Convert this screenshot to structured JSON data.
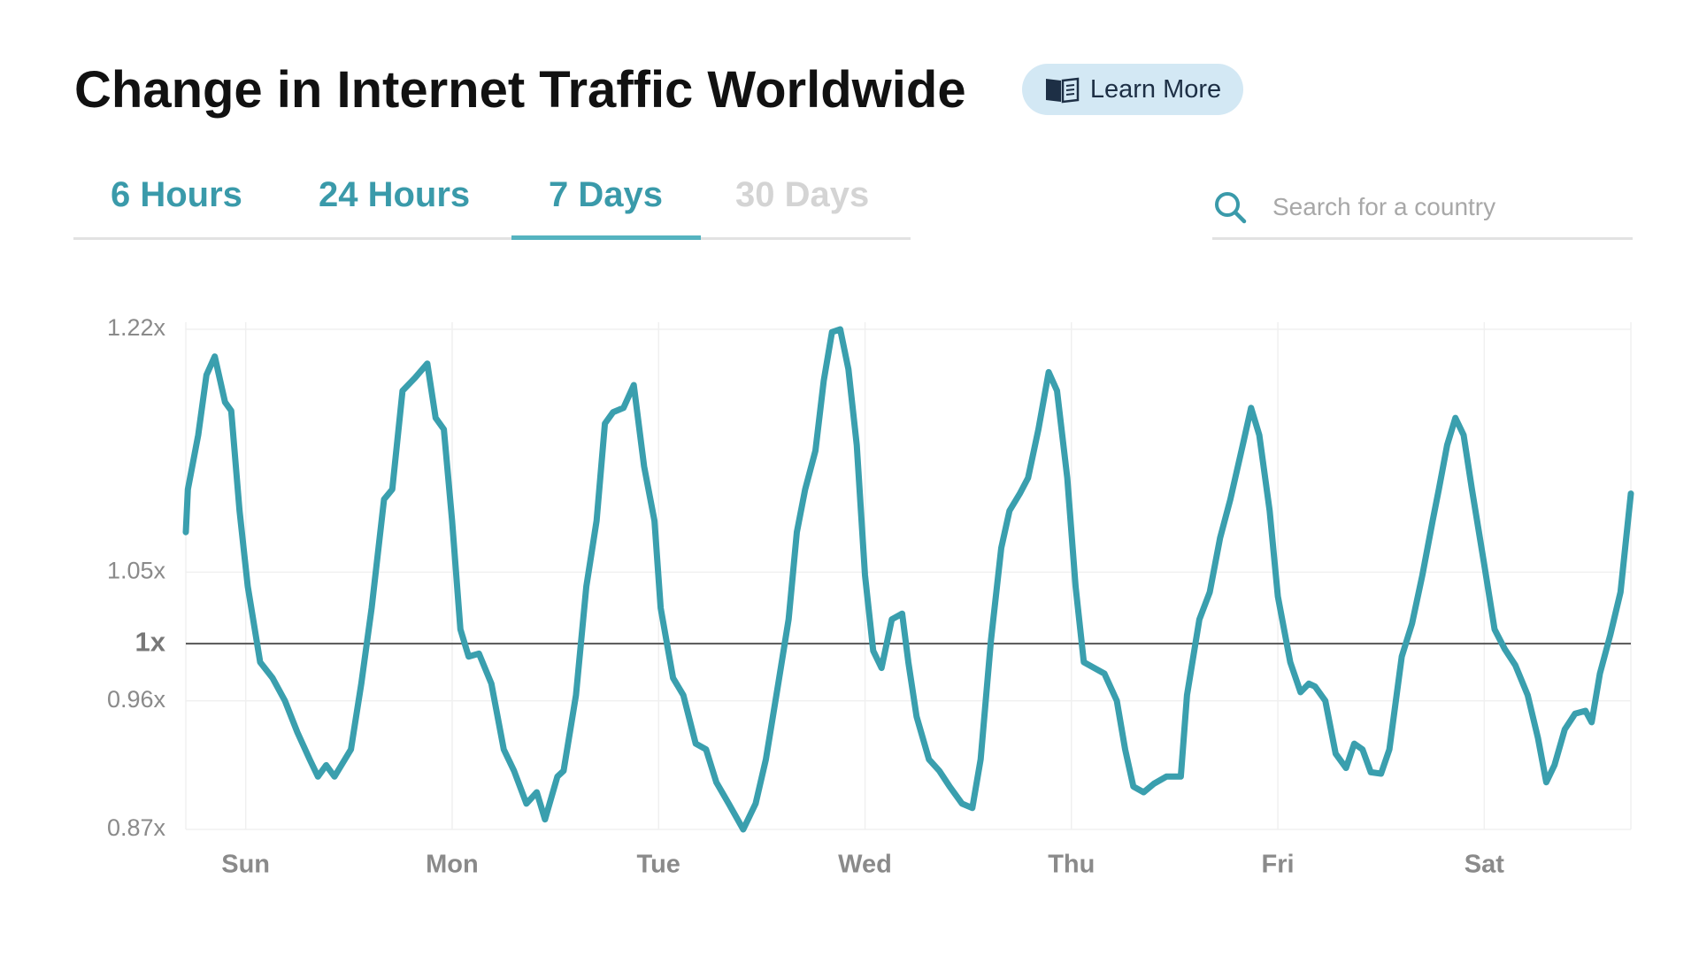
{
  "learn_more": "Learn More",
  "tabs": [
    {
      "label": "6 Hours",
      "state": "normal"
    },
    {
      "label": "24 Hours",
      "state": "normal"
    },
    {
      "label": "7 Days",
      "state": "active"
    },
    {
      "label": "30 Days",
      "state": "disabled"
    }
  ],
  "search_placeholder": "Search for a country",
  "chart_data": {
    "type": "line",
    "title": "Change in Internet Traffic Worldwide",
    "color": "#3a9fae",
    "grid": true,
    "baseline": 1,
    "xlim": [
      -0.29,
      6.71
    ],
    "ylim": [
      0.87,
      1.22
    ],
    "xticks": [
      {
        "value": 0,
        "label": "Sun"
      },
      {
        "value": 1,
        "label": "Mon"
      },
      {
        "value": 2,
        "label": "Tue"
      },
      {
        "value": 3,
        "label": "Wed"
      },
      {
        "value": 4,
        "label": "Thu"
      },
      {
        "value": 5,
        "label": "Fri"
      },
      {
        "value": 6,
        "label": "Sat"
      }
    ],
    "yticks": [
      {
        "value": 0.87,
        "label": "0.87x"
      },
      {
        "value": 0.96,
        "label": "0.96x"
      },
      {
        "value": 1,
        "label": "1x"
      },
      {
        "value": 1.05,
        "label": "1.05x"
      },
      {
        "value": 1.22,
        "label": "1.22x"
      }
    ],
    "x": [
      -0.29,
      -0.28,
      -0.23,
      -0.19,
      -0.15,
      -0.1,
      -0.07,
      -0.03,
      0.01,
      0.07,
      0.13,
      0.19,
      0.25,
      0.31,
      0.35,
      0.39,
      0.43,
      0.51,
      0.56,
      0.61,
      0.67,
      0.71,
      0.76,
      0.82,
      0.88,
      0.92,
      0.96,
      1.0,
      1.04,
      1.08,
      1.13,
      1.19,
      1.25,
      1.3,
      1.36,
      1.41,
      1.45,
      1.51,
      1.54,
      1.6,
      1.65,
      1.7,
      1.74,
      1.78,
      1.83,
      1.88,
      1.93,
      1.98,
      2.01,
      2.07,
      2.12,
      2.18,
      2.23,
      2.28,
      2.34,
      2.41,
      2.47,
      2.52,
      2.58,
      2.63,
      2.67,
      2.71,
      2.76,
      2.8,
      2.84,
      2.88,
      2.92,
      2.96,
      3.0,
      3.04,
      3.08,
      3.13,
      3.18,
      3.21,
      3.25,
      3.31,
      3.36,
      3.41,
      3.47,
      3.52,
      3.56,
      3.61,
      3.66,
      3.7,
      3.75,
      3.79,
      3.84,
      3.89,
      3.93,
      3.98,
      4.02,
      4.06,
      4.11,
      4.16,
      4.22,
      4.26,
      4.3,
      4.35,
      4.4,
      4.46,
      4.53,
      4.56,
      4.62,
      4.67,
      4.72,
      4.77,
      4.83,
      4.87,
      4.91,
      4.96,
      5.0,
      5.06,
      5.11,
      5.15,
      5.18,
      5.23,
      5.28,
      5.33,
      5.37,
      5.41,
      5.45,
      5.5,
      5.54,
      5.6,
      5.65,
      5.7,
      5.75,
      5.78,
      5.82,
      5.86,
      5.9,
      5.94,
      6.0,
      6.05,
      6.1,
      6.15,
      6.21,
      6.26,
      6.3,
      6.34,
      6.39,
      6.44,
      6.49,
      6.52,
      6.56,
      6.61,
      6.66,
      6.71
    ],
    "values": [
      1.078,
      1.108,
      1.146,
      1.188,
      1.201,
      1.169,
      1.163,
      1.093,
      1.04,
      0.987,
      0.976,
      0.96,
      0.938,
      0.919,
      0.907,
      0.915,
      0.907,
      0.926,
      0.972,
      1.025,
      1.101,
      1.108,
      1.177,
      1.186,
      1.196,
      1.158,
      1.15,
      1.086,
      1.01,
      0.991,
      0.993,
      0.972,
      0.926,
      0.911,
      0.888,
      0.896,
      0.877,
      0.907,
      0.911,
      0.964,
      1.04,
      1.086,
      1.154,
      1.162,
      1.165,
      1.181,
      1.124,
      1.086,
      1.025,
      0.976,
      0.964,
      0.93,
      0.926,
      0.903,
      0.888,
      0.87,
      0.888,
      0.919,
      0.972,
      1.017,
      1.078,
      1.108,
      1.135,
      1.184,
      1.218,
      1.22,
      1.192,
      1.139,
      1.048,
      0.995,
      0.983,
      1.017,
      1.021,
      0.987,
      0.949,
      0.919,
      0.911,
      0.9,
      0.888,
      0.885,
      0.919,
      1.002,
      1.067,
      1.093,
      1.105,
      1.116,
      1.15,
      1.19,
      1.177,
      1.116,
      1.04,
      0.987,
      0.983,
      0.979,
      0.96,
      0.926,
      0.9,
      0.896,
      0.902,
      0.907,
      0.907,
      0.964,
      1.017,
      1.036,
      1.074,
      1.101,
      1.139,
      1.165,
      1.146,
      1.093,
      1.033,
      0.987,
      0.966,
      0.972,
      0.97,
      0.96,
      0.923,
      0.913,
      0.93,
      0.926,
      0.91,
      0.909,
      0.926,
      0.991,
      1.014,
      1.048,
      1.086,
      1.108,
      1.139,
      1.158,
      1.146,
      1.108,
      1.055,
      1.01,
      0.996,
      0.985,
      0.964,
      0.934,
      0.903,
      0.915,
      0.94,
      0.951,
      0.953,
      0.945,
      0.979,
      1.006,
      1.036,
      1.105
    ]
  }
}
